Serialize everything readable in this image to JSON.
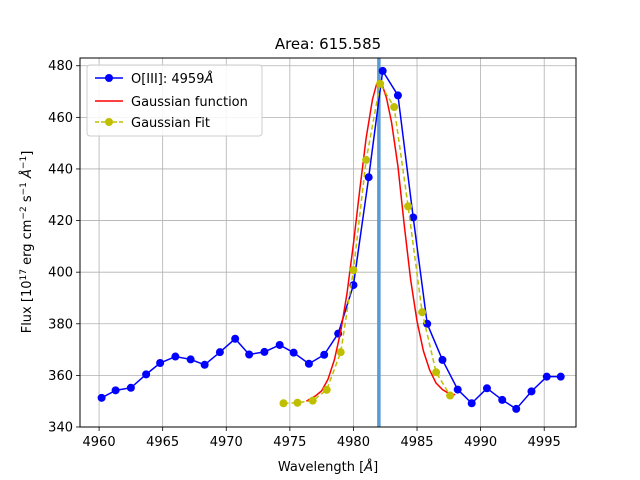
{
  "chart_data": {
    "type": "line",
    "title": "Area: 615.585",
    "xlabel": "Wavelength [Å]",
    "ylabel": "Flux [10^17 erg cm^-2 s^-1 Å^-1]",
    "xlim": [
      4958.5,
      4997.5
    ],
    "ylim": [
      340,
      483
    ],
    "xticks": [
      4960,
      4965,
      4970,
      4975,
      4980,
      4985,
      4990,
      4995
    ],
    "yticks": [
      340,
      360,
      380,
      400,
      420,
      440,
      460,
      480
    ],
    "grid": true,
    "legend_position": "upper-left",
    "vline": {
      "x": 4982.0,
      "color": "#5b9bd5"
    },
    "series": [
      {
        "name": "O[III]: 4959Å",
        "color": "#0000ff",
        "style": "line-marker",
        "x": [
          4960.2,
          4961.3,
          4962.5,
          4963.7,
          4964.8,
          4966.0,
          4967.2,
          4968.3,
          4969.5,
          4970.7,
          4971.8,
          4973.0,
          4974.2,
          4975.3,
          4976.5,
          4977.7,
          4978.8,
          4980.0,
          4981.2,
          4982.3,
          4983.5,
          4984.7,
          4985.8,
          4987.0,
          4988.2,
          4989.3,
          4990.5,
          4991.7,
          4992.8,
          4994.0,
          4995.2,
          4996.3
        ],
        "y": [
          351.3,
          354.2,
          355.2,
          360.4,
          364.8,
          367.3,
          366.2,
          364.1,
          369.0,
          374.2,
          368.1,
          369.1,
          371.8,
          368.8,
          364.5,
          368.0,
          376.2,
          395.0,
          436.8,
          478.0,
          468.5,
          421.2,
          380.0,
          366.0,
          354.5,
          349.2,
          355.0,
          350.5,
          347.0,
          353.8,
          359.5,
          359.5
        ]
      },
      {
        "name": "Gaussian function",
        "color": "#ff0000",
        "style": "line",
        "x": [
          4976.3,
          4977.0,
          4977.5,
          4978.0,
          4978.5,
          4979.0,
          4979.5,
          4980.0,
          4980.5,
          4981.0,
          4981.5,
          4981.8,
          4982.0,
          4982.3,
          4982.6,
          4983.0,
          4983.5,
          4984.0,
          4984.5,
          4985.0,
          4985.5,
          4986.0,
          4986.5,
          4987.0,
          4987.5,
          4988.0
        ],
        "y": [
          350.0,
          352.0,
          354.0,
          358.5,
          366.0,
          377.0,
          392.0,
          411.0,
          432.0,
          452.0,
          467.0,
          472.5,
          474.0,
          472.0,
          467.5,
          458.0,
          441.0,
          418.0,
          397.0,
          381.0,
          369.5,
          362.0,
          357.0,
          354.5,
          353.0,
          352.5
        ]
      },
      {
        "name": "Gaussian Fit",
        "color": "#bfbf00",
        "style": "dashed-marker",
        "x": [
          4974.5,
          4975.6,
          4976.8,
          4977.9,
          4979.0,
          4980.0,
          4981.0,
          4982.1,
          4983.2,
          4984.3,
          4985.4,
          4986.5,
          4987.6
        ],
        "y": [
          349.2,
          349.4,
          350.2,
          354.4,
          369.0,
          400.8,
          443.5,
          473.0,
          464.0,
          425.5,
          384.5,
          361.2,
          352.2
        ]
      }
    ]
  }
}
